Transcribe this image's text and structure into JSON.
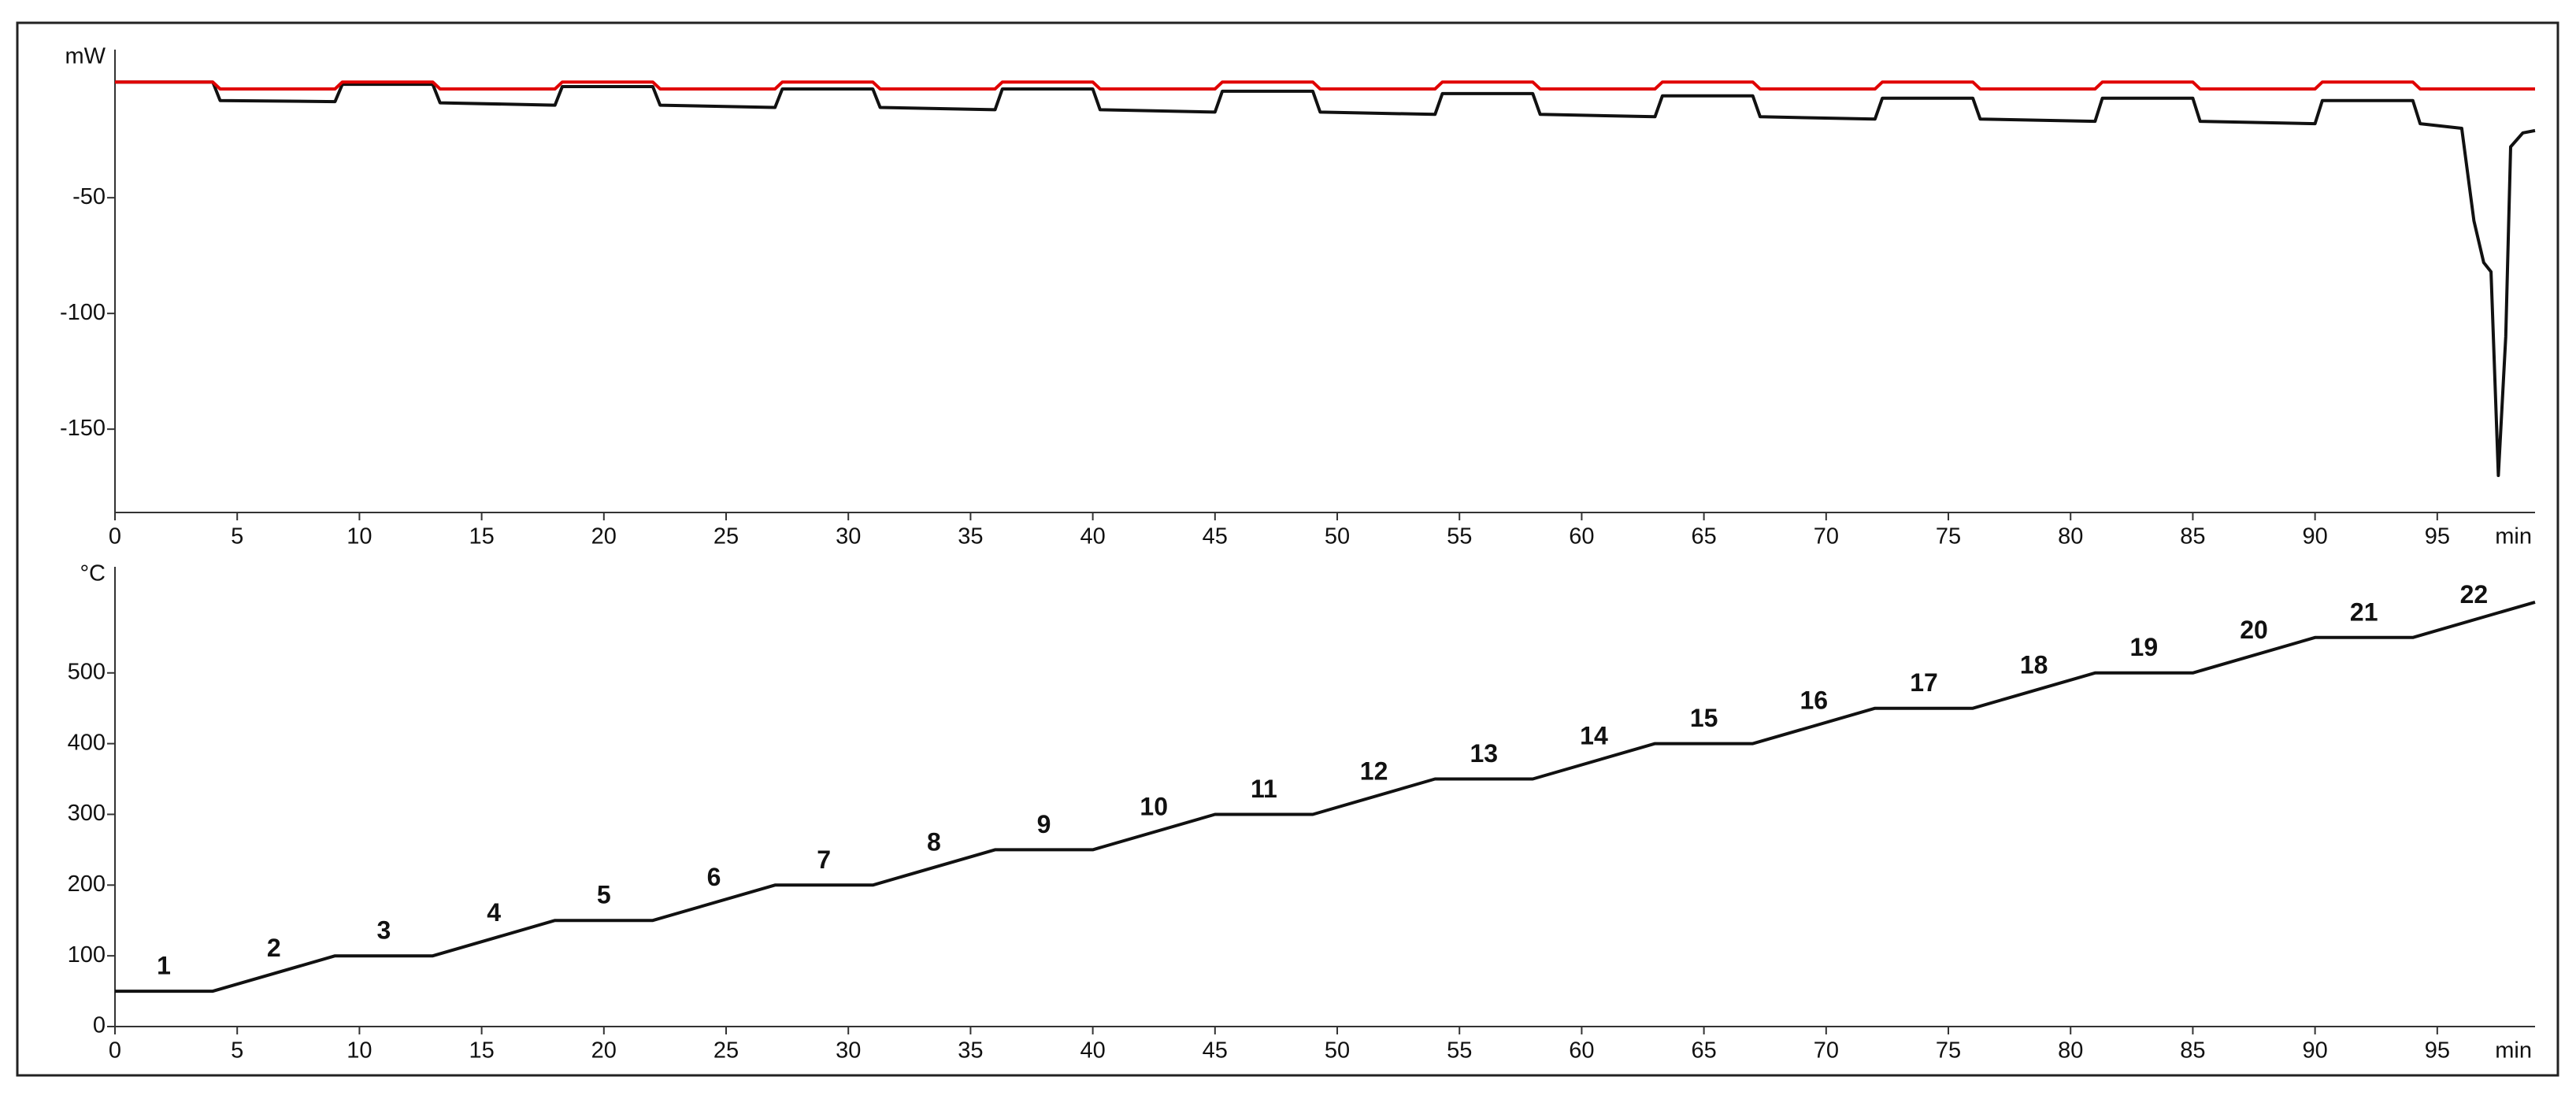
{
  "chart_data": [
    {
      "type": "line",
      "y_unit": "mW",
      "x_unit": "min",
      "xlim": [
        0,
        99
      ],
      "xticks": [
        0,
        5,
        10,
        15,
        20,
        25,
        30,
        35,
        40,
        45,
        50,
        55,
        60,
        65,
        70,
        75,
        80,
        85,
        90,
        95
      ],
      "ylim": [
        -186,
        14
      ],
      "yticks": [
        -150,
        -100,
        -50
      ],
      "x": [
        0,
        4,
        4.3,
        9,
        9.3,
        13,
        13.3,
        18,
        18.3,
        22,
        22.3,
        27,
        27.3,
        31,
        31.3,
        36,
        36.3,
        40,
        40.3,
        45,
        45.3,
        49,
        49.3,
        54,
        54.3,
        58,
        58.3,
        63,
        63.3,
        67,
        67.3,
        72,
        72.3,
        76,
        76.3,
        81,
        81.3,
        85,
        85.3,
        90,
        90.3,
        94,
        94.3,
        96,
        96.5,
        96.9,
        97.2,
        97.5,
        97.8,
        98,
        98.5,
        99
      ],
      "series": [
        {
          "color": "#111111",
          "values": [
            0,
            0,
            -8,
            -8.5,
            -1,
            -1,
            -9,
            -10,
            -2,
            -2,
            -10,
            -11,
            -3,
            -3,
            -11,
            -12,
            -3,
            -3,
            -12,
            -13,
            -4,
            -4,
            -13,
            -14,
            -5,
            -5,
            -14,
            -15,
            -6,
            -6,
            -15,
            -16,
            -7,
            -7,
            -16,
            -17,
            -7,
            -7,
            -17,
            -18,
            -8,
            -8,
            -18,
            -20,
            -60,
            -78,
            -82,
            -170,
            -110,
            -28,
            -22,
            -21
          ]
        },
        {
          "color": "#e00000",
          "values": [
            0,
            0,
            -3,
            -3,
            0,
            0,
            -3,
            -3,
            0,
            0,
            -3,
            -3,
            0,
            0,
            -3,
            -3,
            0,
            0,
            -3,
            -3,
            0,
            0,
            -3,
            -3,
            0,
            0,
            -3,
            -3,
            0,
            0,
            -3,
            -3,
            0,
            0,
            -3,
            -3,
            0,
            0,
            -3,
            -3,
            0,
            0,
            -3,
            -3,
            -3,
            -3,
            -3,
            -3,
            -3,
            -3,
            -3,
            -3
          ]
        }
      ]
    },
    {
      "type": "line",
      "y_unit": "°C",
      "x_unit": "min",
      "xlim": [
        0,
        99
      ],
      "xticks": [
        0,
        5,
        10,
        15,
        20,
        25,
        30,
        35,
        40,
        45,
        50,
        55,
        60,
        65,
        70,
        75,
        80,
        85,
        90,
        95
      ],
      "ylim": [
        0,
        650
      ],
      "yticks": [
        0,
        100,
        200,
        300,
        400,
        500
      ],
      "x": [
        0,
        4,
        9,
        13,
        18,
        22,
        27,
        31,
        36,
        40,
        45,
        49,
        54,
        58,
        63,
        67,
        72,
        76,
        81,
        85,
        90,
        94,
        99
      ],
      "series": [
        {
          "color": "#111111",
          "values": [
            50,
            50,
            100,
            100,
            150,
            150,
            200,
            200,
            250,
            250,
            300,
            300,
            350,
            350,
            400,
            400,
            450,
            450,
            500,
            500,
            550,
            550,
            600
          ]
        }
      ],
      "segment_labels": [
        "1",
        "2",
        "3",
        "4",
        "5",
        "6",
        "7",
        "8",
        "9",
        "10",
        "11",
        "12",
        "13",
        "14",
        "15",
        "16",
        "17",
        "18",
        "19",
        "20",
        "21",
        "22"
      ]
    }
  ]
}
